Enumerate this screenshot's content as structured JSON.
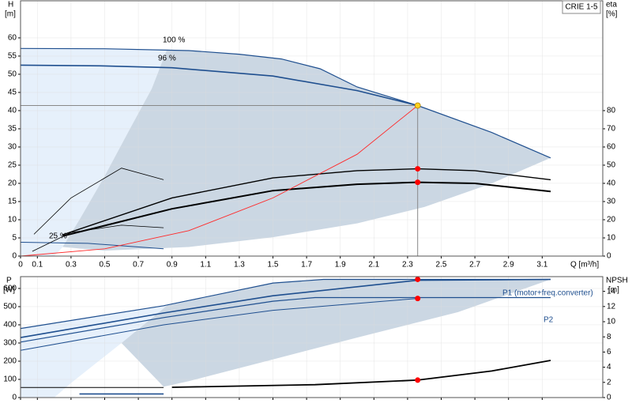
{
  "chart_data": [
    {
      "type": "line",
      "box_label": "CRIE 1-5",
      "y_title": "H",
      "y_unit": "[m]",
      "y2_title": "eta",
      "y2_unit": "[%]",
      "x_title": "Q [m³/h]",
      "xlim": [
        0,
        3.46
      ],
      "xticks": [
        0,
        0.1,
        0.3,
        0.5,
        0.7,
        0.9,
        1.1,
        1.3,
        1.5,
        1.7,
        1.9,
        2.1,
        2.3,
        2.5,
        2.7,
        2.9,
        3.1
      ],
      "ylim": [
        0,
        70.2
      ],
      "yticks": [
        0,
        5,
        10,
        15,
        20,
        25,
        30,
        35,
        40,
        45,
        50,
        55,
        60
      ],
      "y2lim": [
        0,
        140.4
      ],
      "y2ticks": [
        0,
        10,
        20,
        30,
        40,
        50,
        60,
        70,
        80
      ],
      "grid": true,
      "areas": [
        {
          "color": "#e6f0fb",
          "x": [
            0,
            0,
            0.5,
            0.87,
            0.78,
            0.65,
            0.5,
            0.35,
            0.25,
            0.2
          ],
          "values": [
            0,
            57.1,
            57,
            56.8,
            46,
            35,
            22,
            10,
            2.5,
            0
          ]
        },
        {
          "color": "#cbd7e3",
          "x": [
            0.87,
            1.3,
            1.55,
            1.78,
            2.0,
            2.36,
            2.8,
            3.15,
            2.8,
            2.4,
            2.0,
            1.5,
            1.0,
            0.5,
            0.25,
            0.35,
            0.5,
            0.65,
            0.78
          ],
          "values": [
            56.8,
            55.5,
            54.2,
            51.5,
            46.5,
            41.4,
            34,
            27,
            20,
            13.5,
            9,
            5.2,
            2.5,
            1.5,
            2.5,
            10,
            22,
            35,
            46
          ]
        }
      ],
      "series": [
        {
          "name": "100 %",
          "color": "#1f4f8f",
          "width": 1.2,
          "axis": "y",
          "x": [
            0,
            0.5,
            1.0,
            1.3,
            1.55,
            1.78,
            2.0,
            2.36,
            2.8,
            3.15
          ],
          "values": [
            57.1,
            57,
            56.5,
            55.5,
            54.2,
            51.5,
            46.5,
            41.4,
            34,
            27
          ]
        },
        {
          "name": "96 %",
          "color": "#1f4f8f",
          "width": 1.6,
          "axis": "y",
          "x": [
            0,
            0.5,
            0.9,
            1.5,
            2.0,
            2.36
          ],
          "values": [
            52.5,
            52.3,
            51.8,
            49.5,
            45.5,
            41.4
          ]
        },
        {
          "name": "25 %",
          "color": "#1f4f8f",
          "width": 1,
          "axis": "y",
          "x": [
            0,
            0.4,
            0.85
          ],
          "values": [
            3.8,
            3.5,
            2
          ]
        },
        {
          "color": "#000000",
          "width": 1.4,
          "axis": "y2",
          "x": [
            0.25,
            0.9,
            1.5,
            2.0,
            2.36,
            2.7,
            3.15
          ],
          "values": [
            11.7,
            32,
            43,
            47,
            48,
            47,
            42
          ]
        },
        {
          "color": "#000000",
          "width": 2,
          "axis": "y2",
          "x": [
            0.25,
            0.9,
            1.5,
            2.0,
            2.36,
            2.7,
            3.15
          ],
          "values": [
            11,
            26,
            36,
            39.5,
            40.6,
            40,
            35.5
          ]
        },
        {
          "color": "#000000",
          "width": 0.8,
          "axis": "y2",
          "x": [
            0.08,
            0.3,
            0.6,
            0.85
          ],
          "values": [
            12,
            32,
            48.4,
            42
          ]
        },
        {
          "color": "#000000",
          "width": 0.8,
          "axis": "y2",
          "x": [
            0.07,
            0.3,
            0.6,
            0.85
          ],
          "values": [
            2.6,
            13,
            17,
            15.6
          ]
        },
        {
          "color": "#ff2a2a",
          "width": 0.9,
          "axis": "y",
          "x": [
            0,
            0.5,
            1.0,
            1.5,
            2.0,
            2.36
          ],
          "values": [
            0,
            2,
            7,
            16,
            28,
            41.4
          ]
        }
      ],
      "markers": [
        {
          "color": "#ffd21f",
          "axis": "y",
          "crosshair": true,
          "x": [
            2.36
          ],
          "values": [
            41.4
          ]
        },
        {
          "color": "#ff0000",
          "axis": "y2",
          "x": [
            2.36,
            2.36
          ],
          "values": [
            48,
            40.6
          ]
        }
      ]
    },
    {
      "type": "line",
      "y_title": "P",
      "y_unit": "[W]",
      "y2_title": "NPSH",
      "y2_unit": "[m]",
      "xlim": [
        0,
        3.46
      ],
      "xticks": [
        0,
        0.1,
        0.3,
        0.5,
        0.7,
        0.9,
        1.1,
        1.3,
        1.5,
        1.7,
        1.9,
        2.1,
        2.3,
        2.5,
        2.7,
        2.9,
        3.1
      ],
      "ylim": [
        0,
        665
      ],
      "yticks": [
        0,
        100,
        200,
        300,
        400,
        500,
        600
      ],
      "y2lim": [
        0,
        15.94
      ],
      "y2ticks": [
        0,
        2,
        4,
        6,
        8,
        10,
        12,
        14
      ],
      "grid": true,
      "areas": [
        {
          "color": "#e6f0fb",
          "x": [
            0,
            0,
            0.87,
            0.6,
            0.3,
            0.2
          ],
          "values": [
            0,
            380,
            505,
            300,
            80,
            0
          ]
        },
        {
          "color": "#cbd7e3",
          "x": [
            0.87,
            1.5,
            1.8,
            2.36,
            3.15,
            2.6,
            2.0,
            1.5,
            1.0,
            0.85,
            0.6
          ],
          "values": [
            505,
            630,
            650,
            650,
            650,
            470,
            330,
            210,
            90,
            60,
            300
          ]
        }
      ],
      "series": [
        {
          "name": "P1 (motor+freq.converter)",
          "color": "#1f4f8f",
          "width": 1.2,
          "axis": "y",
          "x": [
            0,
            0.85,
            1.5,
            1.8,
            2.36,
            3.15
          ],
          "values": [
            380,
            505,
            630,
            650,
            650,
            650
          ]
        },
        {
          "color": "#1f4f8f",
          "width": 1.6,
          "axis": "y",
          "x": [
            0,
            0.85,
            1.5,
            2.36,
            3.15
          ],
          "values": [
            330,
            465,
            560,
            645,
            650
          ]
        },
        {
          "name": "P2",
          "color": "#1f4f8f",
          "width": 1.2,
          "axis": "y",
          "x": [
            0,
            0.85,
            1.5,
            1.75,
            2.36,
            3.15
          ],
          "values": [
            305,
            440,
            530,
            550,
            550,
            550
          ]
        },
        {
          "color": "#1f4f8f",
          "width": 1,
          "axis": "y",
          "x": [
            0,
            0.85,
            1.5,
            2.36
          ],
          "values": [
            260,
            400,
            480,
            545
          ]
        },
        {
          "color": "#000000",
          "width": 1.8,
          "axis": "y2",
          "x": [
            0.9,
            1.75,
            2.36,
            2.8,
            3.15
          ],
          "values": [
            1.35,
            1.7,
            2.3,
            3.5,
            4.9
          ]
        },
        {
          "color": "#000000",
          "width": 1,
          "axis": "y",
          "x": [
            0,
            0.85
          ],
          "values": [
            55,
            55
          ]
        },
        {
          "color": "#1f4f8f",
          "width": 1.6,
          "axis": "y",
          "x": [
            0.35,
            0.85
          ],
          "values": [
            20,
            20
          ]
        }
      ],
      "markers": [
        {
          "color": "#ff0000",
          "axis": "y",
          "x": [
            2.36,
            2.36
          ],
          "values": [
            650,
            545
          ]
        },
        {
          "color": "#ff0000",
          "axis": "y2",
          "x": [
            2.36
          ],
          "values": [
            2.3
          ]
        }
      ]
    }
  ]
}
